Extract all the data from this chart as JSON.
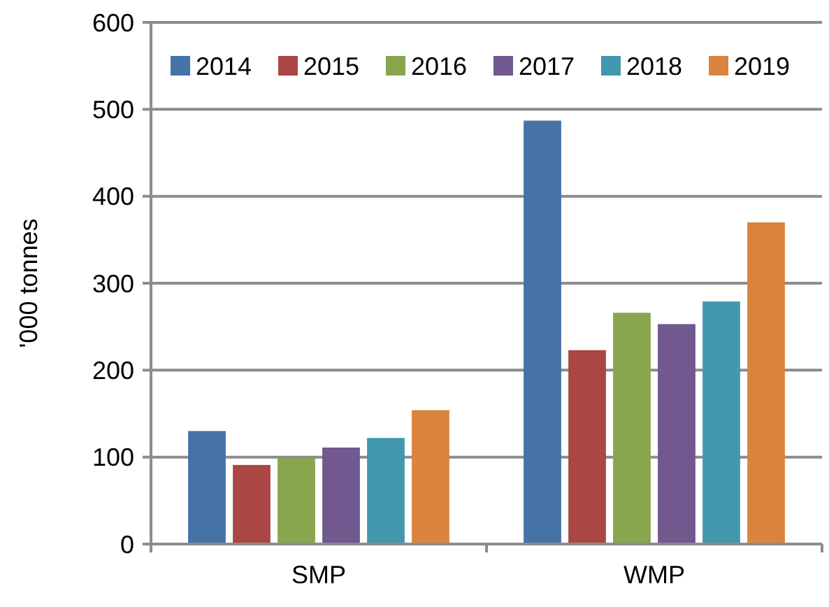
{
  "chart_data": {
    "type": "bar",
    "ylabel": "'000 tonnes",
    "categories": [
      "SMP",
      "WMP"
    ],
    "series": [
      {
        "name": "2014",
        "color": "#4572a7",
        "values": [
          130,
          487
        ]
      },
      {
        "name": "2015",
        "color": "#aa4643",
        "values": [
          91,
          223
        ]
      },
      {
        "name": "2016",
        "color": "#89a54e",
        "values": [
          99,
          266
        ]
      },
      {
        "name": "2017",
        "color": "#71588f",
        "values": [
          111,
          253
        ]
      },
      {
        "name": "2018",
        "color": "#4198af",
        "values": [
          122,
          279
        ]
      },
      {
        "name": "2019",
        "color": "#db843d",
        "values": [
          154,
          370
        ]
      }
    ],
    "ylim": [
      0,
      600
    ],
    "yticks": [
      0,
      100,
      200,
      300,
      400,
      500,
      600
    ],
    "grid": "y",
    "legend": "top"
  }
}
